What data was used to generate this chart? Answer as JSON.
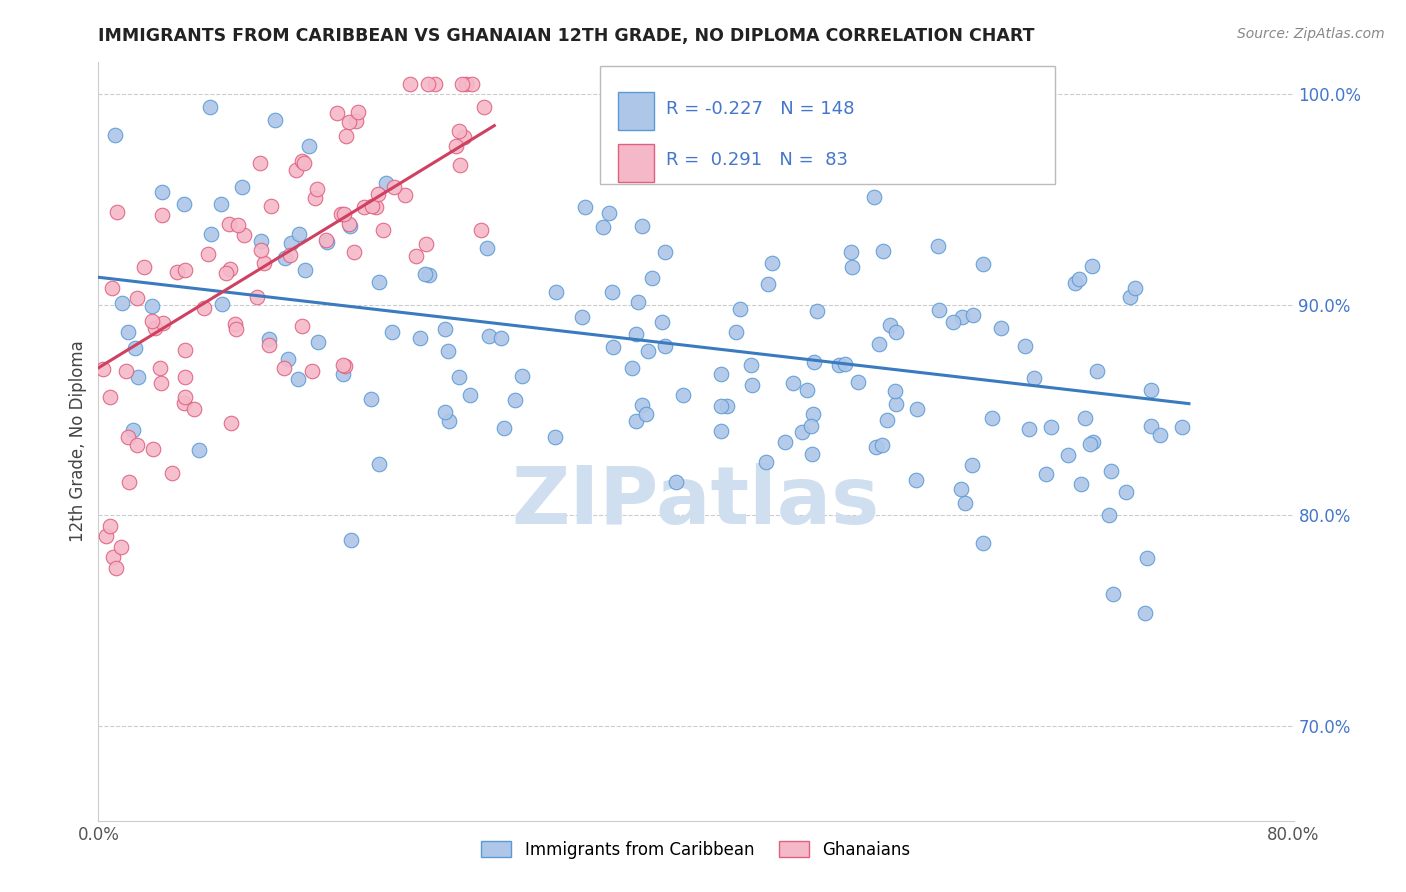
{
  "title": "IMMIGRANTS FROM CARIBBEAN VS GHANAIAN 12TH GRADE, NO DIPLOMA CORRELATION CHART",
  "source_text": "Source: ZipAtlas.com",
  "ylabel": "12th Grade, No Diploma",
  "legend_label_blue": "Immigrants from Caribbean",
  "legend_label_pink": "Ghanaians",
  "R_blue": -0.227,
  "N_blue": 148,
  "R_pink": 0.291,
  "N_pink": 83,
  "xlim": [
    0.0,
    0.8
  ],
  "ylim": [
    0.655,
    1.015
  ],
  "ytick_values": [
    0.7,
    0.8,
    0.9,
    1.0
  ],
  "color_blue_fill": "#aec6e8",
  "color_blue_edge": "#5b9bd5",
  "color_blue_line": "#3a7bbf",
  "color_pink_fill": "#f4b8c8",
  "color_pink_edge": "#e06080",
  "color_pink_line": "#d04060",
  "color_text_blue": "#4477cc",
  "watermark_color": "#d0dff0",
  "background_color": "#ffffff",
  "grid_color": "#cccccc",
  "blue_trend_x": [
    0.0,
    0.73
  ],
  "blue_trend_y": [
    0.913,
    0.853
  ],
  "pink_trend_x": [
    0.0,
    0.265
  ],
  "pink_trend_y": [
    0.87,
    0.985
  ]
}
